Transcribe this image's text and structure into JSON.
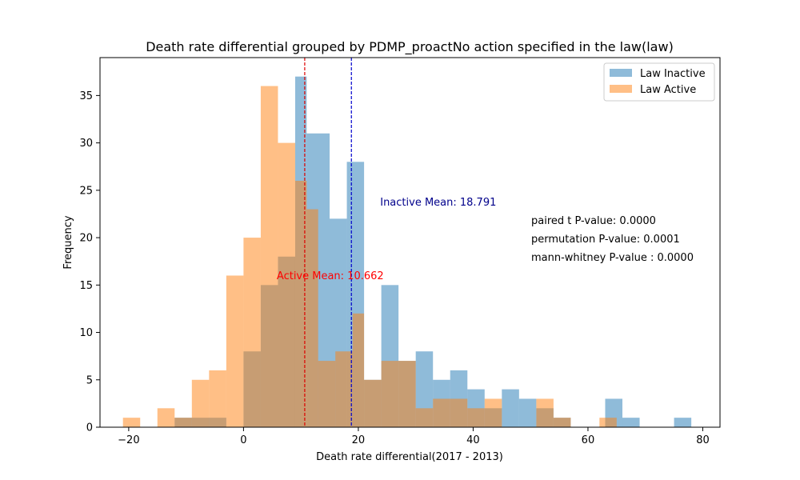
{
  "chart_data": {
    "type": "histogram",
    "title": "Death rate differential grouped by PDMP_proactNo action specified in the law(law)",
    "xlabel": "Death rate differential(2017 - 2013)",
    "ylabel": "Frequency",
    "xlim": [
      -25,
      83
    ],
    "ylim": [
      0,
      39
    ],
    "x_ticks": [
      -20,
      0,
      20,
      40,
      60,
      80
    ],
    "y_ticks": [
      0,
      5,
      10,
      15,
      20,
      25,
      30,
      35
    ],
    "legend_position": "top-right",
    "series": [
      {
        "name": "Law Inactive",
        "color": "#1f77b4",
        "opacity": 0.5,
        "bins": [
          {
            "x0": -12,
            "x1": -3,
            "count": 1
          },
          {
            "x0": -3,
            "x1": 0,
            "count": 0
          },
          {
            "x0": 0,
            "x1": 3,
            "count": 8
          },
          {
            "x0": 3,
            "x1": 6,
            "count": 15
          },
          {
            "x0": 6,
            "x1": 9,
            "count": 18
          },
          {
            "x0": 9,
            "x1": 11,
            "count": 37
          },
          {
            "x0": 11,
            "x1": 15,
            "count": 31
          },
          {
            "x0": 15,
            "x1": 18,
            "count": 22
          },
          {
            "x0": 18,
            "x1": 21,
            "count": 28
          },
          {
            "x0": 21,
            "x1": 24,
            "count": 5
          },
          {
            "x0": 24,
            "x1": 27,
            "count": 15
          },
          {
            "x0": 27,
            "x1": 30,
            "count": 7
          },
          {
            "x0": 30,
            "x1": 33,
            "count": 8
          },
          {
            "x0": 33,
            "x1": 36,
            "count": 5
          },
          {
            "x0": 36,
            "x1": 39,
            "count": 6
          },
          {
            "x0": 39,
            "x1": 42,
            "count": 4
          },
          {
            "x0": 42,
            "x1": 45,
            "count": 2
          },
          {
            "x0": 45,
            "x1": 48,
            "count": 4
          },
          {
            "x0": 48,
            "x1": 51,
            "count": 3
          },
          {
            "x0": 51,
            "x1": 54,
            "count": 2
          },
          {
            "x0": 54,
            "x1": 57,
            "count": 1
          },
          {
            "x0": 63,
            "x1": 66,
            "count": 3
          },
          {
            "x0": 66,
            "x1": 69,
            "count": 1
          },
          {
            "x0": 75,
            "x1": 78,
            "count": 1
          }
        ]
      },
      {
        "name": "Law Active",
        "color": "#ff7f0e",
        "opacity": 0.5,
        "bins": [
          {
            "x0": -21,
            "x1": -18,
            "count": 1
          },
          {
            "x0": -15,
            "x1": -12,
            "count": 2
          },
          {
            "x0": -12,
            "x1": -9,
            "count": 1
          },
          {
            "x0": -9,
            "x1": -6,
            "count": 5
          },
          {
            "x0": -6,
            "x1": -3,
            "count": 6
          },
          {
            "x0": -3,
            "x1": 0,
            "count": 16
          },
          {
            "x0": 0,
            "x1": 3,
            "count": 20
          },
          {
            "x0": 3,
            "x1": 6,
            "count": 36
          },
          {
            "x0": 6,
            "x1": 9,
            "count": 30
          },
          {
            "x0": 9,
            "x1": 11,
            "count": 26
          },
          {
            "x0": 11,
            "x1": 13,
            "count": 23
          },
          {
            "x0": 13,
            "x1": 16,
            "count": 7
          },
          {
            "x0": 16,
            "x1": 19,
            "count": 8
          },
          {
            "x0": 19,
            "x1": 21,
            "count": 12
          },
          {
            "x0": 21,
            "x1": 24,
            "count": 5
          },
          {
            "x0": 24,
            "x1": 27,
            "count": 7
          },
          {
            "x0": 27,
            "x1": 30,
            "count": 7
          },
          {
            "x0": 30,
            "x1": 33,
            "count": 2
          },
          {
            "x0": 33,
            "x1": 36,
            "count": 3
          },
          {
            "x0": 36,
            "x1": 39,
            "count": 3
          },
          {
            "x0": 39,
            "x1": 42,
            "count": 2
          },
          {
            "x0": 42,
            "x1": 45,
            "count": 3
          },
          {
            "x0": 51,
            "x1": 54,
            "count": 3
          },
          {
            "x0": 54,
            "x1": 57,
            "count": 1
          },
          {
            "x0": 62,
            "x1": 65,
            "count": 1
          }
        ]
      }
    ],
    "mean_lines": [
      {
        "label": "Inactive Mean: 18.791",
        "value": 18.791,
        "color": "#0000cc",
        "text_color": "#00008b"
      },
      {
        "label": "Active Mean: 10.662",
        "value": 10.662,
        "color": "#dd0000",
        "text_color": "#ff0000"
      }
    ],
    "annotations": [
      "paired t P-value: 0.0000",
      "permutation P-value: 0.0001",
      "mann-whitney P-value : 0.0000"
    ]
  }
}
